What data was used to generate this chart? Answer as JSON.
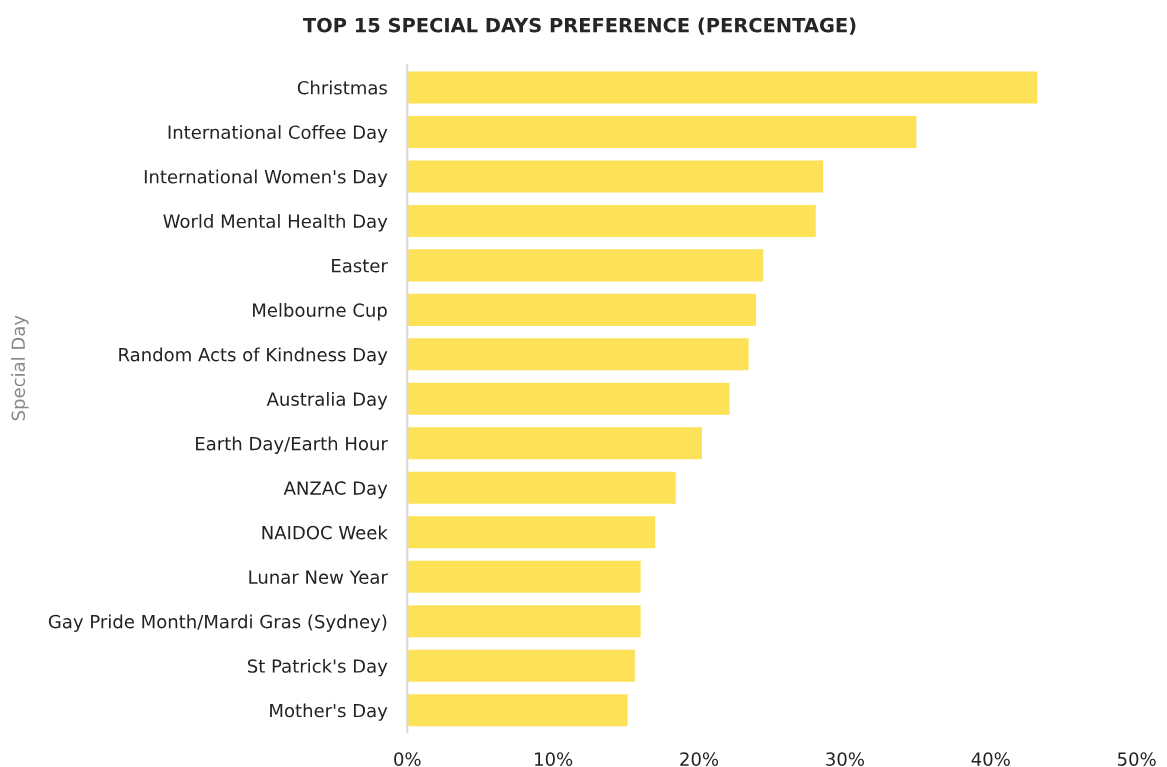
{
  "chart_data": {
    "type": "bar",
    "orientation": "horizontal",
    "title": "TOP 15 SPECIAL DAYS PREFERENCE (PERCENTAGE)",
    "ylabel": "Special Day",
    "categories": [
      "Christmas",
      "International Coffee Day",
      "International Women's Day",
      "World Mental Health Day",
      "Easter",
      "Melbourne Cup",
      "Random Acts of Kindness Day",
      "Australia Day",
      "Earth Day/Earth Hour",
      "ANZAC Day",
      "NAIDOC Week",
      "Lunar New Year",
      "Gay Pride Month/Mardi Gras (Sydney)",
      "St Patrick's Day",
      "Mother's Day"
    ],
    "values": [
      43.2,
      34.9,
      28.5,
      28.0,
      24.4,
      23.9,
      23.4,
      22.1,
      20.2,
      18.4,
      17.0,
      16.0,
      16.0,
      15.6,
      15.1
    ],
    "color": "#fde257",
    "xlim": [
      0,
      50
    ],
    "xticks": [
      {
        "value": 0,
        "label": "0%"
      },
      {
        "value": 10,
        "label": "10%"
      },
      {
        "value": 20,
        "label": "20%"
      },
      {
        "value": 30,
        "label": "30%"
      },
      {
        "value": 40,
        "label": "40%"
      },
      {
        "value": 50,
        "label": "50%"
      }
    ],
    "grid": false
  }
}
